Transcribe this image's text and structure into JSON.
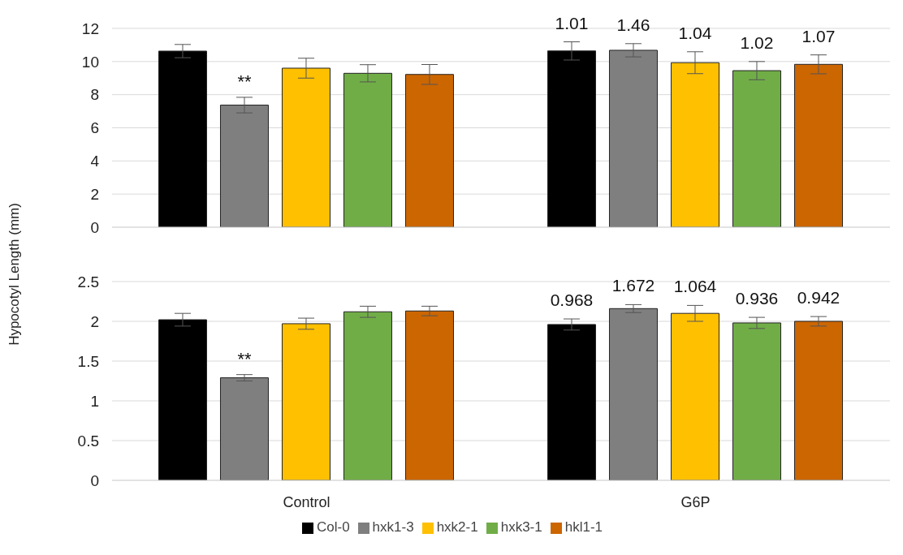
{
  "chart_data": [
    {
      "type": "bar",
      "ylabel": "Hypocotyl Length (mm)",
      "categories": [
        null,
        null
      ],
      "ylim": [
        0,
        12
      ],
      "yticks": [
        0,
        2,
        4,
        6,
        8,
        10,
        12
      ],
      "grid": "y",
      "tick_labels": "y",
      "legend": false,
      "series": [
        {
          "color": "#000000",
          "values": [
            10.63,
            10.64
          ],
          "errors": [
            0.4,
            0.55
          ]
        },
        {
          "color": "#7f7f7f",
          "values": [
            7.37,
            10.68
          ],
          "errors": [
            0.47,
            0.4
          ]
        },
        {
          "color": "#ffc000",
          "values": [
            9.6,
            9.93
          ],
          "errors": [
            0.6,
            0.66
          ]
        },
        {
          "color": "#70ad47",
          "values": [
            9.29,
            9.45
          ],
          "errors": [
            0.52,
            0.55
          ]
        },
        {
          "color": "#cc6600",
          "values": [
            9.22,
            9.83
          ],
          "errors": [
            0.6,
            0.57
          ]
        }
      ],
      "annotations": [
        "**",
        "1.01",
        "1.46",
        "1.04",
        "1.02",
        "1.07"
      ]
    },
    {
      "type": "bar",
      "categories": [
        "Control",
        "G6P"
      ],
      "ylim": [
        0,
        2.5
      ],
      "yticks": [
        0,
        0.5,
        1,
        1.5,
        2,
        2.5
      ],
      "grid": "y",
      "legend": "bottom",
      "series": [
        {
          "name": "Col-0",
          "color": "#000000",
          "values": [
            2.02,
            1.96
          ],
          "errors": [
            0.08,
            0.07
          ]
        },
        {
          "name": "hxk1-3",
          "color": "#7f7f7f",
          "values": [
            1.29,
            2.16
          ],
          "errors": [
            0.04,
            0.05
          ]
        },
        {
          "name": "hxk2-1",
          "color": "#ffc000",
          "values": [
            1.97,
            2.1
          ],
          "errors": [
            0.07,
            0.1
          ]
        },
        {
          "name": "hxk3-1",
          "color": "#70ad47",
          "values": [
            2.12,
            1.98
          ],
          "errors": [
            0.07,
            0.07
          ]
        },
        {
          "name": "hkl1-1",
          "color": "#cc6600",
          "values": [
            2.13,
            2.0
          ],
          "errors": [
            0.06,
            0.06
          ]
        }
      ],
      "annotations": [
        "**",
        "0.968",
        "1.672",
        "1.064",
        "0.936",
        "0.942"
      ]
    }
  ]
}
